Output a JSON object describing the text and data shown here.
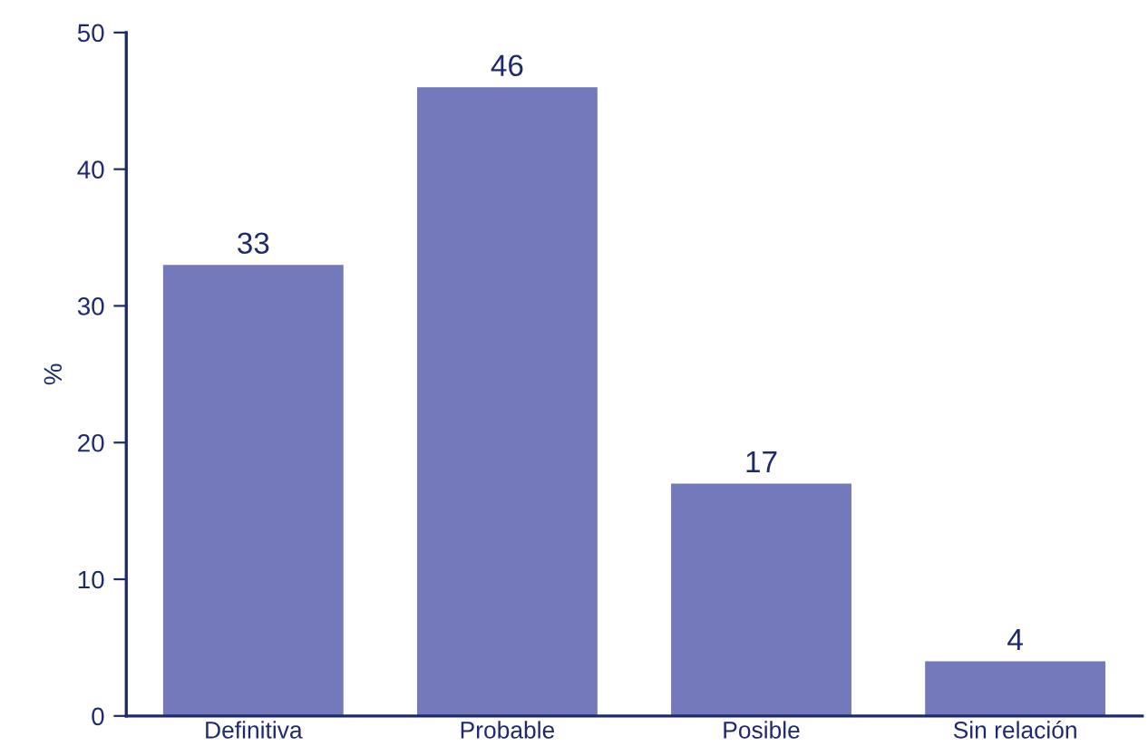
{
  "chart_data": {
    "type": "bar",
    "ylabel": "%",
    "categories": [
      "Definitiva",
      "Probable",
      "Posible",
      "Sin relación"
    ],
    "values": [
      33,
      46,
      17,
      4
    ],
    "color": "#7479bb",
    "ylim": [
      0,
      50
    ],
    "yticks": [
      0,
      10,
      20,
      30,
      40,
      50
    ],
    "grid": false,
    "data_labels": true
  }
}
